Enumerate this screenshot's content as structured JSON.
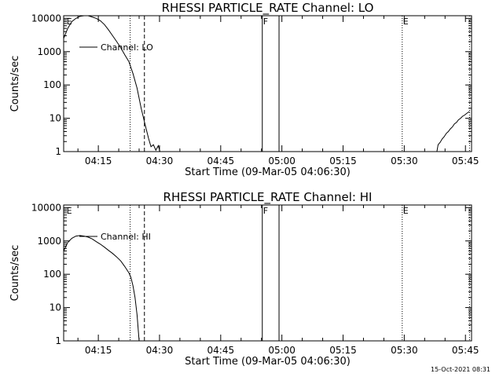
{
  "footer_timestamp": "15-Oct-2021 08:31",
  "chart_data": [
    {
      "type": "line",
      "title": "RHESSI PARTICLE_RATE Channel: LO",
      "xlabel": "Start Time (09-Mar-05 04:06:30)",
      "ylabel": "Counts/sec",
      "y_scale": "log",
      "ylim": [
        1,
        12000
      ],
      "xlim_minutes": [
        0,
        100
      ],
      "x_ticks": [
        {
          "label": "04:15",
          "t": 8.5
        },
        {
          "label": "04:30",
          "t": 23.5
        },
        {
          "label": "04:45",
          "t": 38.5
        },
        {
          "label": "05:00",
          "t": 53.5
        },
        {
          "label": "05:15",
          "t": 68.5
        },
        {
          "label": "05:30",
          "t": 83.5
        },
        {
          "label": "05:45",
          "t": 98.5
        }
      ],
      "y_ticks": [
        {
          "label": "1",
          "v": 1
        },
        {
          "label": "10",
          "v": 10
        },
        {
          "label": "100",
          "v": 100
        },
        {
          "label": "1000",
          "v": 1000
        },
        {
          "label": "10000",
          "v": 10000
        }
      ],
      "legend": {
        "label": "Channel: LO",
        "position": "top-left"
      },
      "markers": [
        {
          "label": "E",
          "t": 0.5,
          "style": "none"
        },
        {
          "label": "",
          "t": 16.3,
          "style": "dotted"
        },
        {
          "label": "",
          "t": 19.8,
          "style": "dashed"
        },
        {
          "label": "F",
          "t": 48.7,
          "style": "solid"
        },
        {
          "label": "",
          "t": 52.8,
          "style": "solid"
        },
        {
          "label": "E",
          "t": 83.0,
          "style": "dotted"
        },
        {
          "label": "",
          "t": 99.5,
          "style": "dotted"
        }
      ],
      "series": [
        {
          "segments": [
            [
              [
                0,
                2500
              ],
              [
                1,
                5000
              ],
              [
                2,
                8000
              ],
              [
                3,
                10000
              ],
              [
                4,
                11500
              ],
              [
                5,
                12000
              ],
              [
                6,
                12000
              ],
              [
                7,
                11000
              ],
              [
                8,
                10000
              ],
              [
                9,
                8500
              ],
              [
                10,
                6500
              ],
              [
                11,
                4500
              ],
              [
                12,
                3000
              ],
              [
                13,
                2000
              ],
              [
                14,
                1300
              ],
              [
                15,
                800
              ],
              [
                16,
                500
              ],
              [
                17,
                220
              ],
              [
                18,
                80
              ],
              [
                19,
                20
              ],
              [
                19.6,
                10
              ],
              [
                20.2,
                5
              ],
              [
                20.8,
                2.5
              ],
              [
                21.4,
                1.4
              ],
              [
                22,
                1.6
              ],
              [
                22.6,
                1.1
              ],
              [
                23.2,
                1.5
              ],
              [
                23.6,
                1
              ]
            ],
            [
              [
                91.5,
                1
              ],
              [
                91.8,
                1.6
              ],
              [
                92.3,
                1.9
              ],
              [
                92.8,
                2.4
              ],
              [
                93.3,
                2.8
              ],
              [
                93.8,
                3.5
              ],
              [
                94.3,
                4
              ],
              [
                94.8,
                4.8
              ],
              [
                95.3,
                5.5
              ],
              [
                95.8,
                6.8
              ],
              [
                96.3,
                7.5
              ],
              [
                96.8,
                9
              ],
              [
                97.3,
                10
              ],
              [
                97.8,
                11.5
              ],
              [
                98.3,
                12.5
              ],
              [
                98.8,
                14
              ],
              [
                99.5,
                16
              ]
            ]
          ]
        }
      ]
    },
    {
      "type": "line",
      "title": "RHESSI PARTICLE_RATE Channel: HI",
      "xlabel": "Start Time (09-Mar-05 04:06:30)",
      "ylabel": "Counts/sec",
      "y_scale": "log",
      "ylim": [
        1,
        12000
      ],
      "xlim_minutes": [
        0,
        100
      ],
      "x_ticks": [
        {
          "label": "04:15",
          "t": 8.5
        },
        {
          "label": "04:30",
          "t": 23.5
        },
        {
          "label": "04:45",
          "t": 38.5
        },
        {
          "label": "05:00",
          "t": 53.5
        },
        {
          "label": "05:15",
          "t": 68.5
        },
        {
          "label": "05:30",
          "t": 83.5
        },
        {
          "label": "05:45",
          "t": 98.5
        }
      ],
      "y_ticks": [
        {
          "label": "1",
          "v": 1
        },
        {
          "label": "10",
          "v": 10
        },
        {
          "label": "100",
          "v": 100
        },
        {
          "label": "1000",
          "v": 1000
        },
        {
          "label": "10000",
          "v": 10000
        }
      ],
      "legend": {
        "label": "Channel: HI",
        "position": "top-left"
      },
      "markers": [
        {
          "label": "E",
          "t": 0.5,
          "style": "none"
        },
        {
          "label": "",
          "t": 16.3,
          "style": "dotted"
        },
        {
          "label": "",
          "t": 19.8,
          "style": "dashed"
        },
        {
          "label": "F",
          "t": 48.7,
          "style": "solid"
        },
        {
          "label": "",
          "t": 52.8,
          "style": "solid"
        },
        {
          "label": "E",
          "t": 83.0,
          "style": "dotted"
        },
        {
          "label": "",
          "t": 99.5,
          "style": "dotted"
        }
      ],
      "series": [
        {
          "segments": [
            [
              [
                0,
                500
              ],
              [
                1,
                900
              ],
              [
                2,
                1200
              ],
              [
                3,
                1400
              ],
              [
                4,
                1450
              ],
              [
                5,
                1400
              ],
              [
                6,
                1300
              ],
              [
                7,
                1150
              ],
              [
                8,
                950
              ],
              [
                9,
                800
              ],
              [
                10,
                650
              ],
              [
                11,
                520
              ],
              [
                12,
                420
              ],
              [
                13,
                330
              ],
              [
                14,
                250
              ],
              [
                15,
                170
              ],
              [
                16,
                110
              ],
              [
                16.5,
                80
              ],
              [
                17,
                45
              ],
              [
                17.5,
                20
              ],
              [
                18,
                6
              ],
              [
                18.3,
                2
              ],
              [
                18.5,
                1
              ]
            ]
          ]
        }
      ]
    }
  ]
}
